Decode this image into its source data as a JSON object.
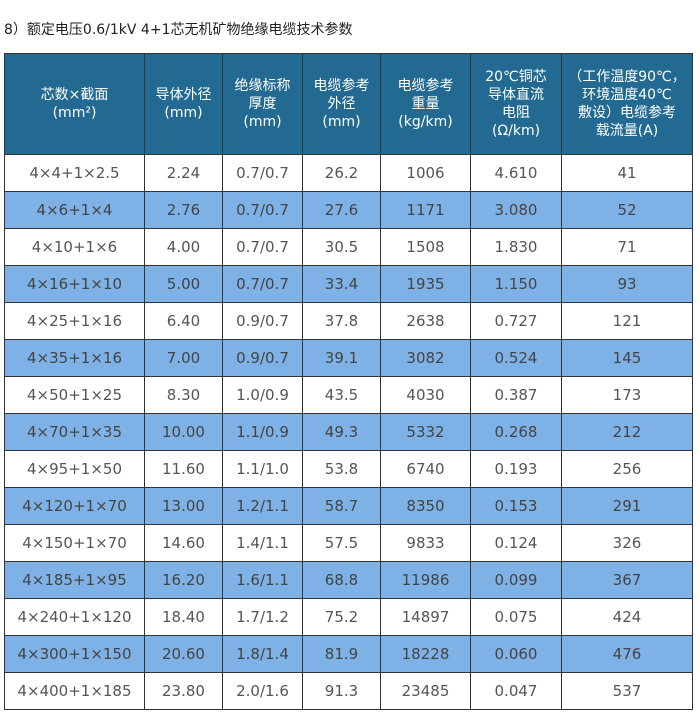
{
  "title": "8）额定电压0.6/1kV  4+1芯无机矿物绝缘电缆技术参数",
  "colors": {
    "header_bg": "#236a93",
    "alt_row_bg": "#7eb1e5"
  },
  "headers": [
    "芯数×截面\n(mm²)",
    "导体外径\n(mm)",
    "绝缘标称\n厚度\n(mm)",
    "电缆参考\n外径\n(mm)",
    "电缆参考\n重量\n(kg/km)",
    "20℃铜芯\n导体直流\n电阻\n(Ω/km)",
    "（工作温度90℃，\n环境温度40℃\n敷设）电缆参考\n载流量(A)"
  ],
  "rows": [
    [
      "4×4+1×2.5",
      "2.24",
      "0.7/0.7",
      "26.2",
      "1006",
      "4.610",
      "41"
    ],
    [
      "4×6+1×4",
      "2.76",
      "0.7/0.7",
      "27.6",
      "1171",
      "3.080",
      "52"
    ],
    [
      "4×10+1×6",
      "4.00",
      "0.7/0.7",
      "30.5",
      "1508",
      "1.830",
      "71"
    ],
    [
      "4×16+1×10",
      "5.00",
      "0.7/0.7",
      "33.4",
      "1935",
      "1.150",
      "93"
    ],
    [
      "4×25+1×16",
      "6.40",
      "0.9/0.7",
      "37.8",
      "2638",
      "0.727",
      "121"
    ],
    [
      "4×35+1×16",
      "7.00",
      "0.9/0.7",
      "39.1",
      "3082",
      "0.524",
      "145"
    ],
    [
      "4×50+1×25",
      "8.30",
      "1.0/0.9",
      "43.5",
      "4030",
      "0.387",
      "173"
    ],
    [
      "4×70+1×35",
      "10.00",
      "1.1/0.9",
      "49.3",
      "5332",
      "0.268",
      "212"
    ],
    [
      "4×95+1×50",
      "11.60",
      "1.1/1.0",
      "53.8",
      "6740",
      "0.193",
      "256"
    ],
    [
      "4×120+1×70",
      "13.00",
      "1.2/1.1",
      "58.7",
      "8350",
      "0.153",
      "291"
    ],
    [
      "4×150+1×70",
      "14.60",
      "1.4/1.1",
      "57.5",
      "9833",
      "0.124",
      "326"
    ],
    [
      "4×185+1×95",
      "16.20",
      "1.6/1.1",
      "68.8",
      "11986",
      "0.099",
      "367"
    ],
    [
      "4×240+1×120",
      "18.40",
      "1.7/1.2",
      "75.2",
      "14897",
      "0.075",
      "424"
    ],
    [
      "4×300+1×150",
      "20.60",
      "1.8/1.4",
      "81.9",
      "18228",
      "0.060",
      "476"
    ],
    [
      "4×400+1×185",
      "23.80",
      "2.0/1.6",
      "91.3",
      "23485",
      "0.047",
      "537"
    ]
  ]
}
